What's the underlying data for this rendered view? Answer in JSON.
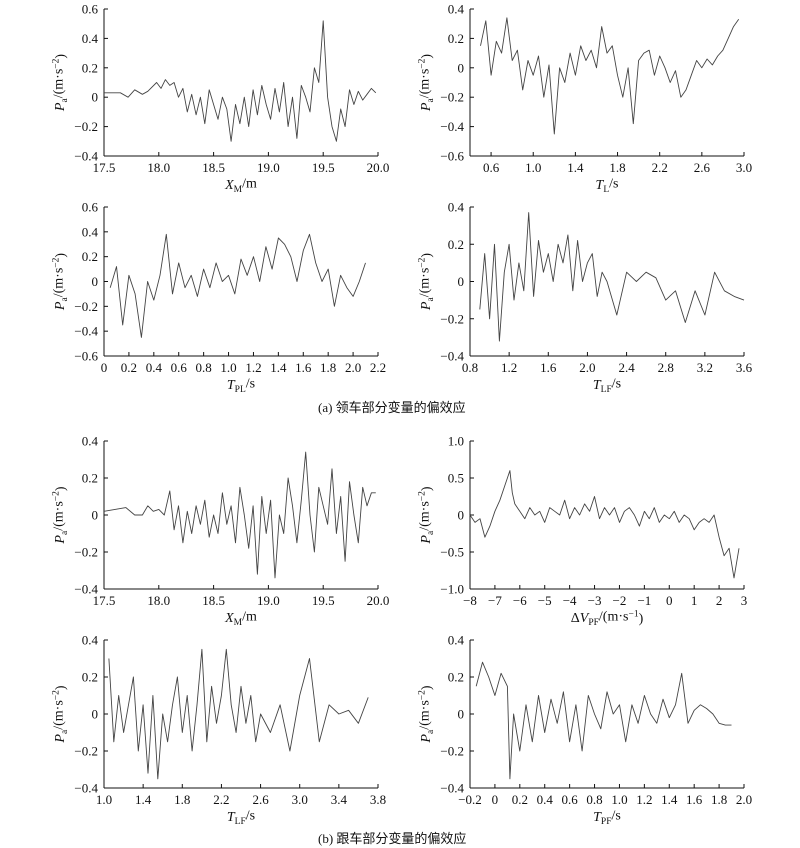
{
  "captions": {
    "a": "(a) 领车部分变量的偏效应",
    "b": "(b) 跟车部分变量的偏效应"
  },
  "colors": {
    "line": "#444444",
    "axis": "#111111"
  },
  "chart_data": [
    {
      "type": "line",
      "panel": "a1",
      "xlabel": "X_M/m",
      "ylabel": "P_a/(m·s^-2)",
      "xlim": [
        17.5,
        20.0
      ],
      "ylim": [
        -0.4,
        0.6
      ],
      "xticks": [
        "17.5",
        "18.0",
        "18.5",
        "19.0",
        "19.5",
        "20.0"
      ],
      "yticks": [
        "-0.4",
        "-0.2",
        "0",
        "0.2",
        "0.4",
        "0.6"
      ],
      "x": [
        17.5,
        17.65,
        17.72,
        17.78,
        17.85,
        17.9,
        17.98,
        18.02,
        18.06,
        18.1,
        18.14,
        18.18,
        18.22,
        18.26,
        18.3,
        18.34,
        18.38,
        18.42,
        18.46,
        18.5,
        18.54,
        18.58,
        18.62,
        18.66,
        18.7,
        18.74,
        18.78,
        18.82,
        18.86,
        18.9,
        18.94,
        18.98,
        19.02,
        19.06,
        19.1,
        19.14,
        19.18,
        19.22,
        19.26,
        19.3,
        19.34,
        19.38,
        19.42,
        19.46,
        19.5,
        19.54,
        19.58,
        19.62,
        19.66,
        19.7,
        19.74,
        19.78,
        19.82,
        19.86,
        19.9,
        19.94,
        19.98
      ],
      "y": [
        0.03,
        0.03,
        0.0,
        0.05,
        0.02,
        0.04,
        0.1,
        0.06,
        0.12,
        0.08,
        0.1,
        0.0,
        0.06,
        -0.1,
        0.02,
        -0.12,
        0.0,
        -0.18,
        0.05,
        -0.05,
        -0.15,
        0.0,
        -0.08,
        -0.3,
        -0.05,
        -0.18,
        0.0,
        -0.2,
        0.05,
        -0.12,
        0.08,
        -0.05,
        -0.15,
        0.06,
        -0.1,
        0.1,
        -0.2,
        0.0,
        -0.28,
        0.08,
        0.0,
        -0.1,
        0.2,
        0.1,
        0.52,
        0.0,
        -0.2,
        -0.3,
        -0.08,
        -0.2,
        0.05,
        -0.05,
        0.04,
        -0.02,
        0.02,
        0.06,
        0.03
      ]
    },
    {
      "type": "line",
      "panel": "a2",
      "xlabel": "T_L/s",
      "ylabel": "P_a/(m·s^-2)",
      "xlim": [
        0.4,
        3.0
      ],
      "ylim": [
        -0.6,
        0.4
      ],
      "xticks": [
        "0.6",
        "1.0",
        "1.4",
        "1.8",
        "2.2",
        "2.6",
        "3.0"
      ],
      "yticks": [
        "-0.6",
        "-0.4",
        "-0.2",
        "0",
        "0.2",
        "0.4"
      ],
      "x": [
        0.5,
        0.55,
        0.6,
        0.65,
        0.7,
        0.75,
        0.8,
        0.85,
        0.9,
        0.95,
        1.0,
        1.05,
        1.1,
        1.15,
        1.2,
        1.25,
        1.3,
        1.35,
        1.4,
        1.45,
        1.5,
        1.55,
        1.6,
        1.65,
        1.7,
        1.75,
        1.8,
        1.85,
        1.9,
        1.95,
        2.0,
        2.05,
        2.1,
        2.15,
        2.2,
        2.25,
        2.3,
        2.35,
        2.4,
        2.45,
        2.5,
        2.55,
        2.6,
        2.65,
        2.7,
        2.75,
        2.8,
        2.85,
        2.9,
        2.95
      ],
      "y": [
        0.15,
        0.32,
        -0.05,
        0.18,
        0.1,
        0.34,
        0.05,
        0.12,
        -0.15,
        0.05,
        -0.05,
        0.08,
        -0.2,
        0.02,
        -0.45,
        0.0,
        -0.1,
        0.1,
        -0.05,
        0.15,
        0.05,
        0.12,
        0.0,
        0.28,
        0.1,
        0.15,
        -0.05,
        -0.2,
        0.0,
        -0.38,
        0.05,
        0.1,
        0.12,
        -0.05,
        0.08,
        0.0,
        -0.1,
        -0.02,
        -0.2,
        -0.15,
        -0.05,
        0.05,
        0.0,
        0.06,
        0.02,
        0.08,
        0.12,
        0.2,
        0.28,
        0.33
      ]
    },
    {
      "type": "line",
      "panel": "a3",
      "xlabel": "T_PL/s",
      "ylabel": "P_a/(m·s^-2)",
      "xlim": [
        0.0,
        2.2
      ],
      "ylim": [
        -0.6,
        0.6
      ],
      "xticks": [
        "0",
        "0.2",
        "0.4",
        "0.6",
        "0.8",
        "1.0",
        "1.2",
        "1.4",
        "1.6",
        "1.8",
        "2.0",
        "2.2"
      ],
      "yticks": [
        "-0.6",
        "-0.4",
        "-0.2",
        "0",
        "0.2",
        "0.4",
        "0.6"
      ],
      "x": [
        0.05,
        0.1,
        0.15,
        0.2,
        0.25,
        0.3,
        0.35,
        0.4,
        0.45,
        0.5,
        0.55,
        0.6,
        0.65,
        0.7,
        0.75,
        0.8,
        0.85,
        0.9,
        0.95,
        1.0,
        1.05,
        1.1,
        1.15,
        1.2,
        1.25,
        1.3,
        1.35,
        1.4,
        1.45,
        1.5,
        1.55,
        1.6,
        1.65,
        1.7,
        1.75,
        1.8,
        1.85,
        1.9,
        1.95,
        2.0,
        2.05,
        2.1
      ],
      "y": [
        -0.05,
        0.12,
        -0.35,
        0.05,
        -0.1,
        -0.45,
        0.0,
        -0.15,
        0.05,
        0.38,
        -0.1,
        0.15,
        -0.05,
        0.05,
        -0.12,
        0.1,
        -0.05,
        0.15,
        0.0,
        0.05,
        -0.1,
        0.18,
        0.05,
        0.2,
        0.0,
        0.28,
        0.1,
        0.35,
        0.3,
        0.2,
        0.0,
        0.25,
        0.38,
        0.15,
        0.0,
        0.1,
        -0.2,
        0.05,
        -0.05,
        -0.12,
        0.0,
        0.15
      ]
    },
    {
      "type": "line",
      "panel": "a4",
      "xlabel": "T_LF/s",
      "ylabel": "P_a/(m·s^-2)",
      "xlim": [
        0.8,
        3.6
      ],
      "ylim": [
        -0.4,
        0.4
      ],
      "xticks": [
        "0.8",
        "1.2",
        "1.6",
        "2.0",
        "2.4",
        "2.8",
        "3.2",
        "3.6"
      ],
      "yticks": [
        "-0.4",
        "-0.2",
        "0",
        "0.2",
        "0.4"
      ],
      "x": [
        0.9,
        0.95,
        1.0,
        1.05,
        1.1,
        1.15,
        1.2,
        1.25,
        1.3,
        1.35,
        1.4,
        1.45,
        1.5,
        1.55,
        1.6,
        1.65,
        1.7,
        1.75,
        1.8,
        1.85,
        1.9,
        1.95,
        2.0,
        2.05,
        2.1,
        2.15,
        2.2,
        2.3,
        2.4,
        2.5,
        2.6,
        2.7,
        2.8,
        2.9,
        3.0,
        3.1,
        3.2,
        3.3,
        3.4,
        3.5,
        3.6
      ],
      "y": [
        -0.15,
        0.15,
        -0.2,
        0.2,
        -0.32,
        0.05,
        0.2,
        -0.1,
        0.1,
        -0.05,
        0.37,
        -0.08,
        0.22,
        0.05,
        0.15,
        0.0,
        0.2,
        0.1,
        0.25,
        -0.05,
        0.22,
        0.0,
        0.1,
        0.15,
        -0.08,
        0.05,
        0.0,
        -0.18,
        0.05,
        0.0,
        0.05,
        0.02,
        -0.1,
        -0.05,
        -0.22,
        -0.05,
        -0.18,
        0.05,
        -0.05,
        -0.08,
        -0.1
      ]
    },
    {
      "type": "line",
      "panel": "b1",
      "xlabel": "X_M/m",
      "ylabel": "P_a/(m·s^-2)",
      "xlim": [
        17.5,
        20.0
      ],
      "ylim": [
        -0.4,
        0.4
      ],
      "xticks": [
        "17.5",
        "18.0",
        "18.5",
        "19.0",
        "19.5",
        "20.0"
      ],
      "yticks": [
        "-0.4",
        "-0.2",
        "0",
        "0.2",
        "0.4"
      ],
      "x": [
        17.5,
        17.6,
        17.7,
        17.78,
        17.85,
        17.9,
        17.95,
        18.0,
        18.05,
        18.1,
        18.14,
        18.18,
        18.22,
        18.26,
        18.3,
        18.34,
        18.38,
        18.42,
        18.46,
        18.5,
        18.54,
        18.58,
        18.62,
        18.66,
        18.7,
        18.74,
        18.78,
        18.82,
        18.86,
        18.9,
        18.94,
        18.98,
        19.02,
        19.06,
        19.1,
        19.14,
        19.18,
        19.22,
        19.26,
        19.3,
        19.34,
        19.38,
        19.42,
        19.46,
        19.5,
        19.54,
        19.58,
        19.62,
        19.66,
        19.7,
        19.74,
        19.78,
        19.82,
        19.86,
        19.9,
        19.94,
        19.98
      ],
      "y": [
        0.02,
        0.03,
        0.04,
        0.0,
        0.0,
        0.05,
        0.02,
        0.03,
        0.0,
        0.13,
        -0.08,
        0.05,
        -0.15,
        0.02,
        -0.1,
        0.05,
        -0.05,
        0.08,
        -0.12,
        0.0,
        -0.1,
        0.12,
        -0.05,
        0.05,
        -0.15,
        0.15,
        0.0,
        -0.18,
        0.05,
        -0.32,
        0.1,
        -0.1,
        0.08,
        -0.34,
        0.0,
        -0.1,
        0.2,
        0.05,
        -0.15,
        0.08,
        0.34,
        0.0,
        -0.2,
        0.15,
        0.05,
        -0.05,
        0.25,
        -0.1,
        0.1,
        -0.25,
        0.18,
        0.0,
        -0.15,
        0.15,
        0.05,
        0.12,
        0.12
      ]
    },
    {
      "type": "line",
      "panel": "b2",
      "xlabel": "ΔV_PF/(m·s^-1)",
      "ylabel": "P_a/(m·s^-2)",
      "xlim": [
        -8,
        3
      ],
      "ylim": [
        -1.0,
        1.0
      ],
      "xticks": [
        "-8",
        "-7",
        "-6",
        "-5",
        "-4",
        "-3",
        "-2",
        "-1",
        "0",
        "1",
        "2",
        "3"
      ],
      "yticks": [
        "-1.0",
        "-0.5",
        "0",
        "0.5",
        "1.0"
      ],
      "x": [
        -8,
        -7.8,
        -7.6,
        -7.4,
        -7.2,
        -7.0,
        -6.8,
        -6.6,
        -6.4,
        -6.3,
        -6.2,
        -6.0,
        -5.8,
        -5.6,
        -5.4,
        -5.2,
        -5.0,
        -4.8,
        -4.6,
        -4.4,
        -4.2,
        -4.0,
        -3.8,
        -3.6,
        -3.4,
        -3.2,
        -3.0,
        -2.8,
        -2.6,
        -2.4,
        -2.2,
        -2.0,
        -1.8,
        -1.6,
        -1.4,
        -1.2,
        -1.0,
        -0.8,
        -0.6,
        -0.4,
        -0.2,
        0.0,
        0.2,
        0.4,
        0.6,
        0.8,
        1.0,
        1.2,
        1.4,
        1.6,
        1.8,
        2.0,
        2.2,
        2.4,
        2.6,
        2.8
      ],
      "y": [
        0.0,
        -0.1,
        -0.05,
        -0.3,
        -0.15,
        0.05,
        0.2,
        0.4,
        0.6,
        0.3,
        0.15,
        0.05,
        -0.05,
        0.1,
        0.0,
        0.05,
        -0.1,
        0.1,
        0.05,
        0.0,
        0.2,
        -0.05,
        0.1,
        0.0,
        0.15,
        0.05,
        0.25,
        -0.05,
        0.1,
        0.0,
        0.1,
        -0.1,
        0.05,
        0.1,
        0.0,
        -0.15,
        0.05,
        -0.05,
        0.1,
        -0.1,
        0.0,
        -0.05,
        0.05,
        -0.1,
        0.0,
        -0.05,
        -0.2,
        -0.1,
        -0.05,
        -0.1,
        0.0,
        -0.3,
        -0.55,
        -0.45,
        -0.85,
        -0.45
      ]
    },
    {
      "type": "line",
      "panel": "b3",
      "xlabel": "T_LF/s",
      "ylabel": "P_a/(m·s^-2)",
      "xlim": [
        1.0,
        3.8
      ],
      "ylim": [
        -0.4,
        0.4
      ],
      "xticks": [
        "1.0",
        "1.4",
        "1.8",
        "2.2",
        "2.6",
        "3.0",
        "3.4",
        "3.8"
      ],
      "yticks": [
        "-0.4",
        "-0.2",
        "0",
        "0.2",
        "0.4"
      ],
      "x": [
        1.05,
        1.1,
        1.15,
        1.2,
        1.25,
        1.3,
        1.35,
        1.4,
        1.45,
        1.5,
        1.55,
        1.6,
        1.65,
        1.7,
        1.75,
        1.8,
        1.85,
        1.9,
        1.95,
        2.0,
        2.05,
        2.1,
        2.15,
        2.2,
        2.25,
        2.3,
        2.35,
        2.4,
        2.45,
        2.5,
        2.55,
        2.6,
        2.7,
        2.8,
        2.9,
        3.0,
        3.1,
        3.2,
        3.3,
        3.4,
        3.5,
        3.6,
        3.7
      ],
      "y": [
        0.3,
        -0.15,
        0.1,
        -0.1,
        0.05,
        0.2,
        -0.2,
        0.05,
        -0.32,
        0.1,
        -0.35,
        0.0,
        -0.15,
        0.05,
        0.2,
        -0.1,
        0.1,
        -0.2,
        0.05,
        0.35,
        -0.15,
        0.15,
        -0.05,
        0.1,
        0.35,
        0.05,
        -0.1,
        0.15,
        -0.05,
        0.1,
        -0.15,
        0.0,
        -0.1,
        0.05,
        -0.2,
        0.1,
        0.3,
        -0.15,
        0.05,
        0.0,
        0.02,
        -0.05,
        0.09
      ]
    },
    {
      "type": "line",
      "panel": "b4",
      "xlabel": "T_PF/s",
      "ylabel": "P_a/(m·s^-2)",
      "xlim": [
        -0.2,
        2.0
      ],
      "ylim": [
        -0.4,
        0.4
      ],
      "xticks": [
        "-0.2",
        "0",
        "0.2",
        "0.4",
        "0.6",
        "0.8",
        "1.0",
        "1.2",
        "1.4",
        "1.6",
        "1.8",
        "2.0"
      ],
      "yticks": [
        "-0.4",
        "-0.2",
        "0",
        "0.2",
        "0.4"
      ],
      "x": [
        -0.15,
        -0.1,
        -0.05,
        0.0,
        0.05,
        0.1,
        0.12,
        0.15,
        0.2,
        0.25,
        0.3,
        0.35,
        0.4,
        0.45,
        0.5,
        0.55,
        0.6,
        0.65,
        0.7,
        0.75,
        0.8,
        0.85,
        0.9,
        0.95,
        1.0,
        1.05,
        1.1,
        1.15,
        1.2,
        1.25,
        1.3,
        1.35,
        1.4,
        1.45,
        1.5,
        1.55,
        1.6,
        1.65,
        1.7,
        1.75,
        1.8,
        1.85,
        1.9
      ],
      "y": [
        0.15,
        0.28,
        0.2,
        0.1,
        0.22,
        0.15,
        -0.35,
        0.0,
        -0.2,
        0.05,
        -0.15,
        0.1,
        -0.1,
        0.08,
        -0.05,
        0.12,
        -0.15,
        0.05,
        -0.2,
        0.1,
        0.0,
        -0.08,
        0.12,
        0.0,
        0.05,
        -0.15,
        0.05,
        -0.05,
        0.1,
        0.0,
        -0.05,
        0.08,
        -0.02,
        0.05,
        0.22,
        -0.05,
        0.02,
        0.05,
        0.03,
        0.0,
        -0.05,
        -0.06,
        -0.06
      ]
    }
  ]
}
